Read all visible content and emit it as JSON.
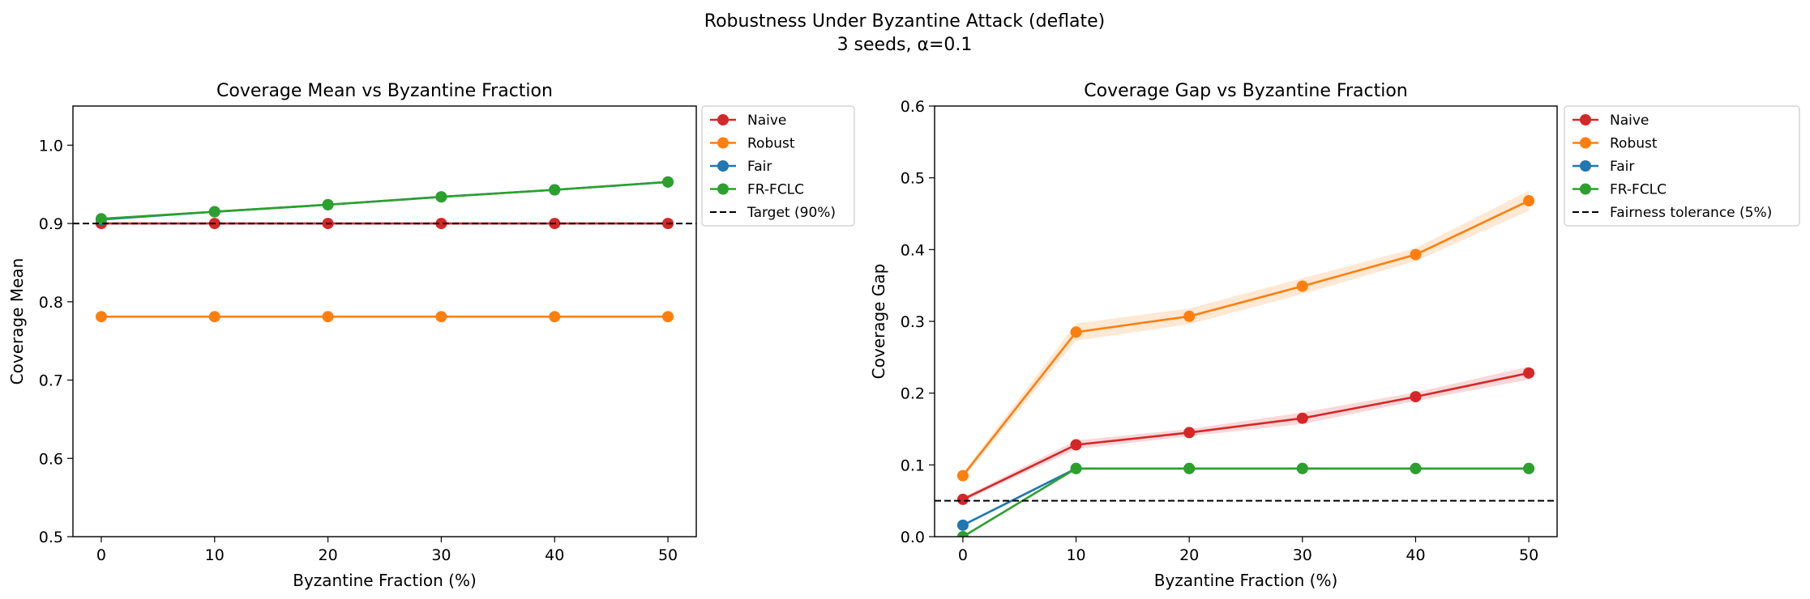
{
  "figure": {
    "title_line1": "Robustness Under Byzantine Attack (deflate)",
    "title_line2": "3 seeds, α=0.1"
  },
  "colors": {
    "Naive": "#d62728",
    "Robust": "#ff7f0e",
    "Fair": "#1f77b4",
    "FR-FCLC": "#2ca02c",
    "reference": "#000000"
  },
  "chart_data": [
    {
      "type": "line",
      "title": "Coverage Mean vs Byzantine Fraction",
      "xlabel": "Byzantine Fraction (%)",
      "ylabel": "Coverage Mean",
      "x": [
        0,
        10,
        20,
        30,
        40,
        50
      ],
      "xlim": [
        -2.5,
        52.5
      ],
      "ylim": [
        0.5,
        1.05
      ],
      "xticks": [
        0,
        10,
        20,
        30,
        40,
        50
      ],
      "yticks": [
        0.5,
        0.6,
        0.7,
        0.8,
        0.9,
        1.0
      ],
      "ytick_labels": [
        "0.5",
        "0.6",
        "0.7",
        "0.8",
        "0.9",
        "1.0"
      ],
      "grid": false,
      "legend_position": "outside upper right",
      "series": [
        {
          "name": "Naive",
          "values": [
            0.9,
            0.9,
            0.9,
            0.9,
            0.9,
            0.9
          ],
          "band": [
            0,
            0,
            0,
            0,
            0,
            0
          ]
        },
        {
          "name": "Robust",
          "values": [
            0.781,
            0.781,
            0.781,
            0.781,
            0.781,
            0.781
          ],
          "band": [
            0,
            0,
            0,
            0,
            0,
            0
          ]
        },
        {
          "name": "Fair",
          "values": [
            0.905,
            0.915,
            0.924,
            0.934,
            0.943,
            0.953
          ],
          "band": [
            0,
            0,
            0,
            0,
            0,
            0
          ]
        },
        {
          "name": "FR-FCLC",
          "values": [
            0.906,
            0.915,
            0.924,
            0.934,
            0.943,
            0.953
          ],
          "band": [
            0,
            0,
            0,
            0,
            0,
            0
          ]
        }
      ],
      "reference_line": {
        "name": "Target (90%)",
        "y": 0.9
      }
    },
    {
      "type": "line",
      "title": "Coverage Gap vs Byzantine Fraction",
      "xlabel": "Byzantine Fraction (%)",
      "ylabel": "Coverage Gap",
      "x": [
        0,
        10,
        20,
        30,
        40,
        50
      ],
      "xlim": [
        -2.5,
        52.5
      ],
      "ylim": [
        0.0,
        0.6
      ],
      "xticks": [
        0,
        10,
        20,
        30,
        40,
        50
      ],
      "yticks": [
        0.0,
        0.1,
        0.2,
        0.3,
        0.4,
        0.5,
        0.6
      ],
      "ytick_labels": [
        "0.0",
        "0.1",
        "0.2",
        "0.3",
        "0.4",
        "0.5",
        "0.6"
      ],
      "grid": false,
      "legend_position": "outside upper right",
      "series": [
        {
          "name": "Naive",
          "values": [
            0.052,
            0.128,
            0.145,
            0.165,
            0.195,
            0.228
          ],
          "band": [
            0.003,
            0.006,
            0.005,
            0.008,
            0.006,
            0.009
          ]
        },
        {
          "name": "Robust",
          "values": [
            0.085,
            0.285,
            0.307,
            0.349,
            0.393,
            0.468
          ],
          "band": [
            0.004,
            0.012,
            0.011,
            0.011,
            0.009,
            0.014
          ]
        },
        {
          "name": "Fair",
          "values": [
            0.016,
            0.095,
            0.095,
            0.095,
            0.095,
            0.095
          ],
          "band": [
            0,
            0,
            0,
            0,
            0,
            0
          ]
        },
        {
          "name": "FR-FCLC",
          "values": [
            0.0,
            0.095,
            0.095,
            0.095,
            0.095,
            0.095
          ],
          "band": [
            0,
            0,
            0,
            0,
            0,
            0
          ]
        }
      ],
      "reference_line": {
        "name": "Fairness tolerance (5%)",
        "y": 0.05
      }
    }
  ]
}
